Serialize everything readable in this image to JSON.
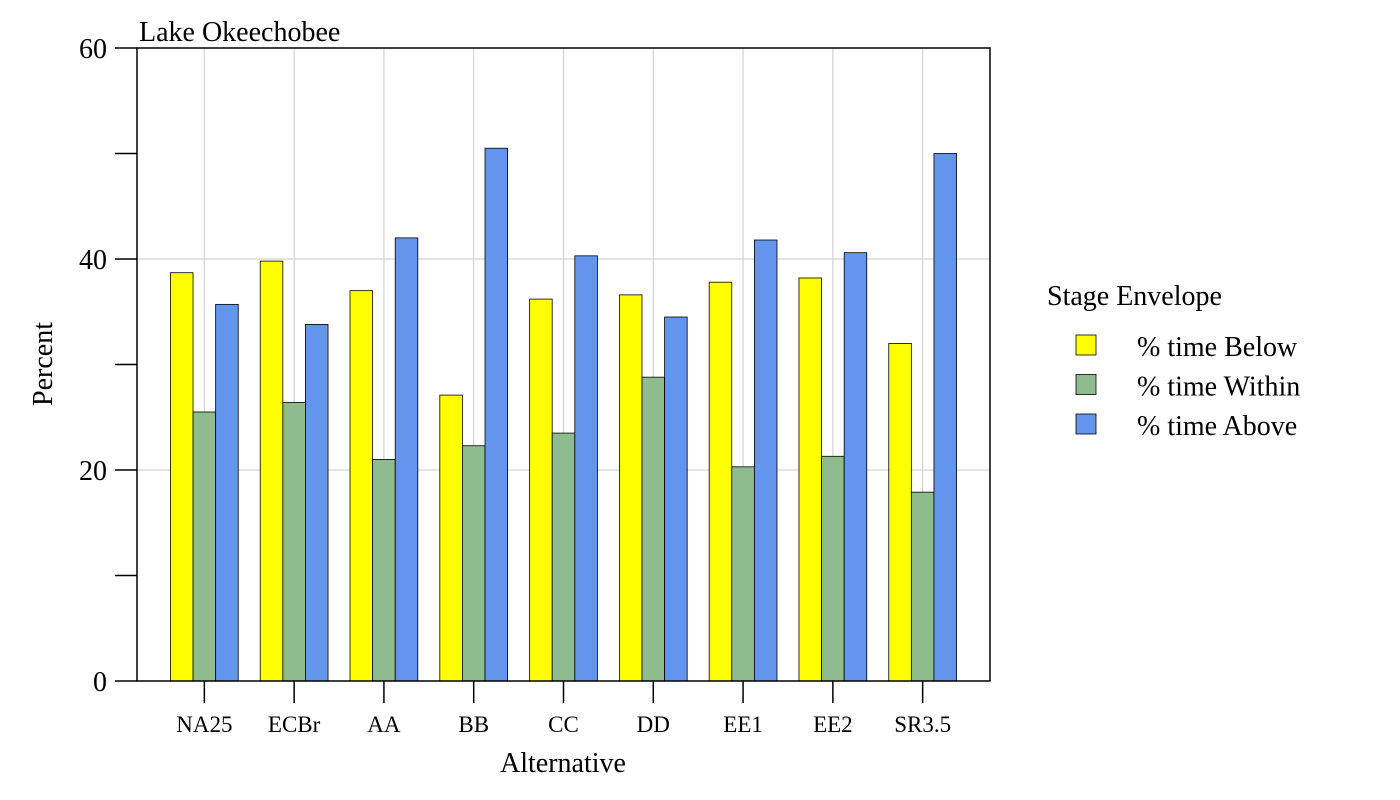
{
  "chart_data": {
    "type": "bar",
    "title": "Lake Okeechobee",
    "xlabel": "Alternative",
    "ylabel": "Percent",
    "categories": [
      "NA25",
      "ECBr",
      "AA",
      "BB",
      "CC",
      "DD",
      "EE1",
      "EE2",
      "SR3.5"
    ],
    "ylim": [
      0,
      60
    ],
    "yticks_major": [
      0,
      20,
      40,
      60
    ],
    "yticks_minor": [
      10,
      30,
      50
    ],
    "grid": true,
    "legend": {
      "title": "Stage Envelope",
      "position": "right"
    },
    "series": [
      {
        "name": "% time Below",
        "color": "#ffff00",
        "values": [
          38.7,
          39.8,
          37.0,
          27.1,
          36.2,
          36.6,
          37.8,
          38.2,
          32.0
        ]
      },
      {
        "name": "% time Within",
        "color": "#8fbc8f",
        "values": [
          25.5,
          26.4,
          21.0,
          22.3,
          23.5,
          28.8,
          20.3,
          21.3,
          17.9
        ]
      },
      {
        "name": "% time Above",
        "color": "#6495ed",
        "values": [
          35.7,
          33.8,
          42.0,
          50.5,
          40.3,
          34.5,
          41.8,
          40.6,
          50.0
        ]
      }
    ]
  }
}
